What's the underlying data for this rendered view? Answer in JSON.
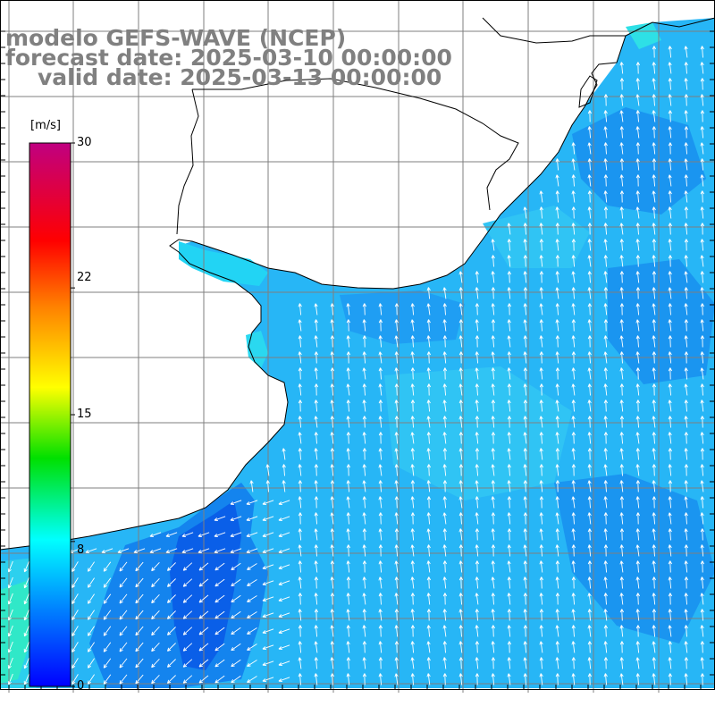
{
  "title": {
    "model": "modelo GEFS-WAVE (NCEP)",
    "forecast": "forecast date: 2025-03-10 00:00:00",
    "valid": "valid date: 2025-03-13 00:00:00"
  },
  "colorbar": {
    "unit": "[m/s]",
    "ticks": [
      {
        "label": "30",
        "value": 30
      },
      {
        "label": "22",
        "value": 22
      },
      {
        "label": "15",
        "value": 15
      },
      {
        "label": "8",
        "value": 8
      },
      {
        "label": "0",
        "value": 0
      }
    ],
    "colors": [
      "#0000ff",
      "#00a0ff",
      "#00ffff",
      "#00e000",
      "#ffff00",
      "#ff8000",
      "#ff0000",
      "#c00080"
    ],
    "range": [
      0,
      30
    ]
  },
  "colors": {
    "land": "#ffffff",
    "grid": "#7f7f7f",
    "coast": "#000000",
    "arrow": "#ffffff"
  },
  "icons": {
    "wind-arrow": "wind-arrow-icon"
  }
}
